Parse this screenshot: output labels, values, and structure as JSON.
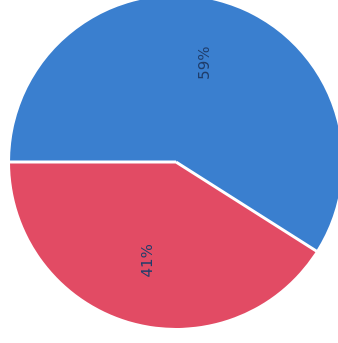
{
  "chart_data": {
    "type": "pie",
    "series": [
      {
        "value": 59,
        "label": "59%",
        "color": "#3a7fcf"
      },
      {
        "value": 41,
        "label": "41%",
        "color": "#e24b64"
      }
    ],
    "label_color": "#1f3d6b",
    "separator_color": "#ffffff"
  }
}
